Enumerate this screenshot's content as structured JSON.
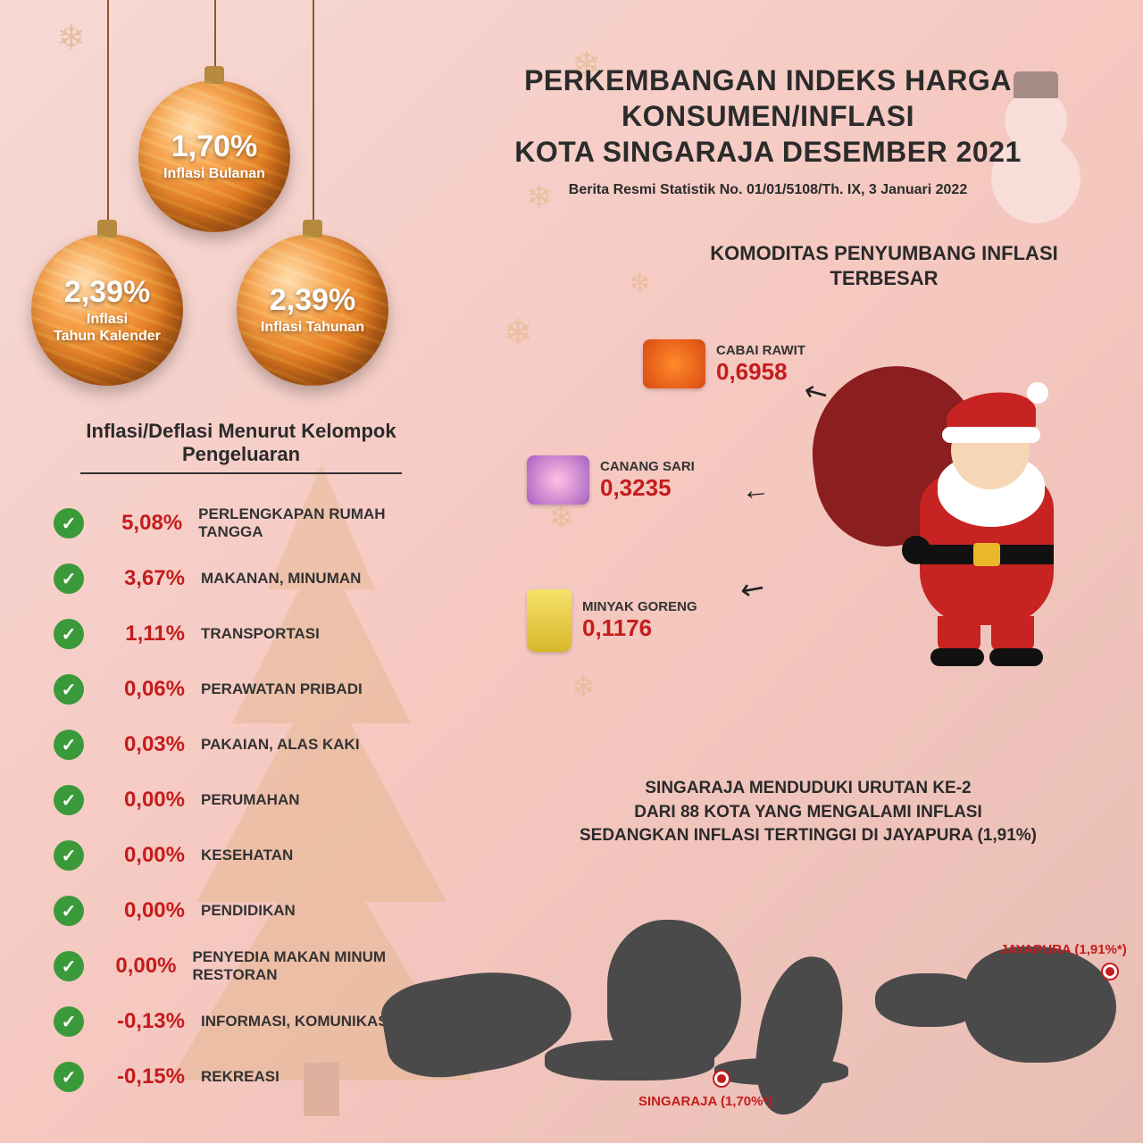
{
  "title": {
    "line1": "PERKEMBANGAN INDEKS HARGA KONSUMEN/INFLASI",
    "line2": "KOTA SINGARAJA DESEMBER 2021",
    "subtitle": "Berita Resmi Statistik No. 01/01/5108/Th. IX, 3 Januari 2022"
  },
  "ornaments": [
    {
      "value": "1,70%",
      "label": "Inflasi Bulanan"
    },
    {
      "value": "2,39%",
      "label": "Inflasi\nTahun Kalender"
    },
    {
      "value": "2,39%",
      "label": "Inflasi Tahunan"
    }
  ],
  "komoditas": {
    "heading": "KOMODITAS PENYUMBANG INFLASI TERBESAR",
    "items": [
      {
        "name": "CABAI RAWIT",
        "value": "0,6958"
      },
      {
        "name": "CANANG SARI",
        "value": "0,3235"
      },
      {
        "name": "MINYAK GORENG",
        "value": "0,1176"
      }
    ]
  },
  "groups": {
    "heading": "Inflasi/Deflasi Menurut Kelompok Pengeluaran",
    "items": [
      {
        "pct": "5,08%",
        "label": "PERLENGKAPAN RUMAH TANGGA"
      },
      {
        "pct": "3,67%",
        "label": "MAKANAN, MINUMAN"
      },
      {
        "pct": "1,11%",
        "label": "TRANSPORTASI"
      },
      {
        "pct": "0,06%",
        "label": "PERAWATAN PRIBADI"
      },
      {
        "pct": "0,03%",
        "label": "PAKAIAN, ALAS KAKI"
      },
      {
        "pct": "0,00%",
        "label": "PERUMAHAN"
      },
      {
        "pct": "0,00%",
        "label": "KESEHATAN"
      },
      {
        "pct": "0,00%",
        "label": "PENDIDIKAN"
      },
      {
        "pct": "0,00%",
        "label": "PENYEDIA MAKAN MINUM RESTORAN"
      },
      {
        "pct": "-0,13%",
        "label": "INFORMASI, KOMUNIKASI"
      },
      {
        "pct": "-0,15%",
        "label": "REKREASI"
      }
    ]
  },
  "map": {
    "heading": "SINGARAJA MENDUDUKI URUTAN KE-2\nDARI 88 KOTA YANG MENGALAMI INFLASI\nSEDANGKAN INFLASI TERTINGGI DI JAYAPURA (1,91%)",
    "markers": [
      {
        "label": "SINGARAJA (1,70%*)"
      },
      {
        "label": "JAYAPURA (1,91%*)"
      }
    ]
  },
  "colors": {
    "accent_red": "#c41c1c",
    "check_green": "#3a9a3a",
    "map_fill": "#4a4a4a",
    "gold": "#d4a050",
    "bg_start": "#f7d9d5",
    "bg_end": "#e8beb5"
  }
}
